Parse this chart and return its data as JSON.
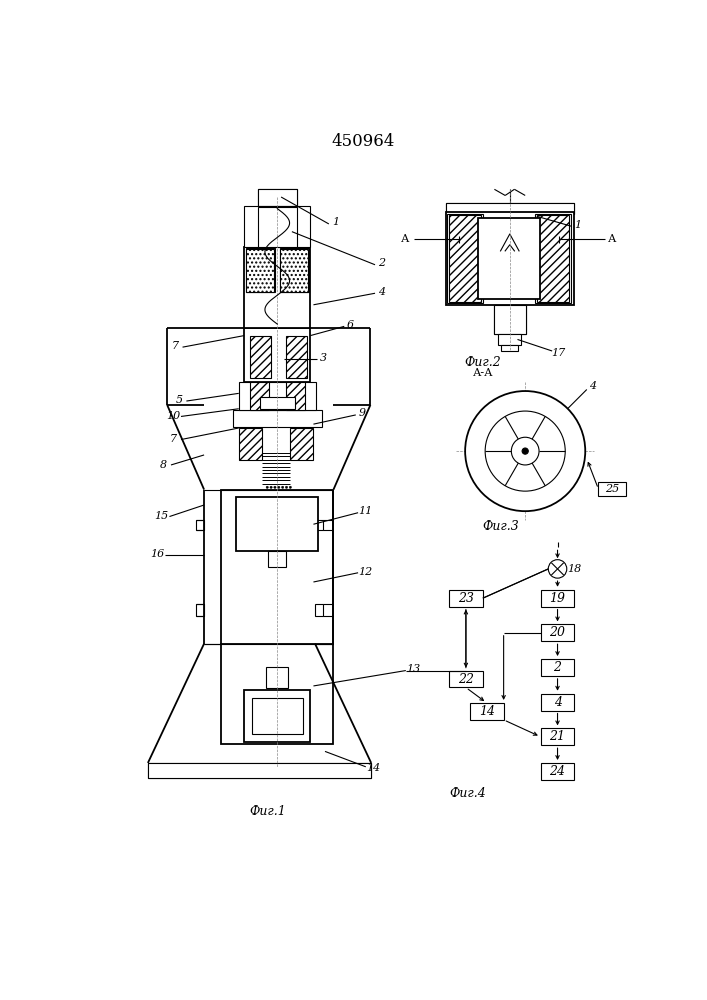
{
  "title": "450964",
  "bg_color": "#ffffff",
  "line_color": "#000000",
  "fig1_label": "Фиг.1",
  "fig2_label": "Фиг.2",
  "fig3_label": "Фиг.3",
  "fig4_label": "Фиг.4",
  "fig2_sectlabel": "А-А"
}
